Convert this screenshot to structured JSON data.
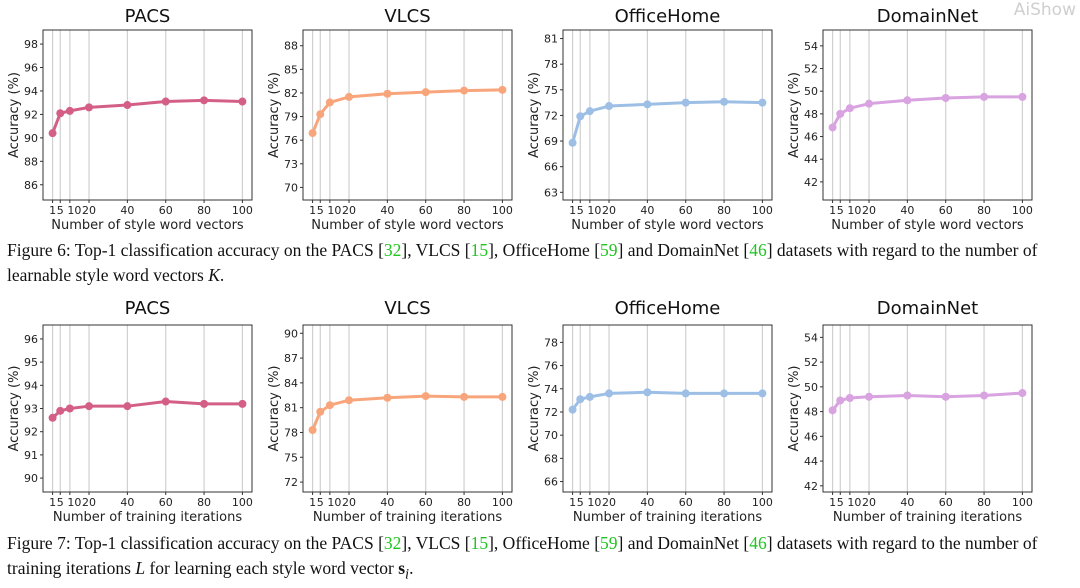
{
  "chart_data": [
    {
      "type": "line",
      "figure": 6,
      "title": "PACS",
      "xlabel": "Number of style word vectors",
      "ylabel": "Accuracy (%)",
      "x": [
        1,
        5,
        10,
        20,
        40,
        60,
        80,
        100
      ],
      "x_ticks": [
        "1",
        "5",
        "10",
        "20",
        "40",
        "60",
        "80",
        "100"
      ],
      "values": [
        90.4,
        92.1,
        92.3,
        92.6,
        92.8,
        93.1,
        93.2,
        93.1
      ],
      "y_ticks": [
        86,
        88,
        90,
        92,
        94,
        96,
        98
      ],
      "ylim": [
        84.7,
        99.2
      ],
      "xlim": [
        -4,
        105
      ],
      "grid": "vertical",
      "color": "#d45f86"
    },
    {
      "type": "line",
      "figure": 6,
      "title": "VLCS",
      "xlabel": "Number of style word vectors",
      "ylabel": "Accuracy (%)",
      "x": [
        1,
        5,
        10,
        20,
        40,
        60,
        80,
        100
      ],
      "x_ticks": [
        "1",
        "5",
        "10",
        "20",
        "40",
        "60",
        "80",
        "100"
      ],
      "values": [
        76.9,
        79.3,
        80.8,
        81.5,
        81.9,
        82.1,
        82.3,
        82.4
      ],
      "y_ticks": [
        70,
        73,
        76,
        79,
        82,
        85,
        88
      ],
      "ylim": [
        68.4,
        90.0
      ],
      "xlim": [
        -4,
        105
      ],
      "grid": "vertical",
      "color": "#f9a57c"
    },
    {
      "type": "line",
      "figure": 6,
      "title": "OfficeHome",
      "xlabel": "Number of style word vectors",
      "ylabel": "Accuracy (%)",
      "x": [
        1,
        5,
        10,
        20,
        40,
        60,
        80,
        100
      ],
      "x_ticks": [
        "1",
        "5",
        "10",
        "20",
        "40",
        "60",
        "80",
        "100"
      ],
      "values": [
        68.8,
        71.9,
        72.5,
        73.1,
        73.3,
        73.5,
        73.6,
        73.5
      ],
      "y_ticks": [
        63,
        66,
        69,
        72,
        75,
        78,
        81
      ],
      "ylim": [
        62.1,
        82.0
      ],
      "xlim": [
        -4,
        105
      ],
      "grid": "vertical",
      "color": "#9dbfe6"
    },
    {
      "type": "line",
      "figure": 6,
      "title": "DomainNet",
      "xlabel": "Number of style word vectors",
      "ylabel": "Accuracy (%)",
      "x": [
        1,
        5,
        10,
        20,
        40,
        60,
        80,
        100
      ],
      "x_ticks": [
        "1",
        "5",
        "10",
        "20",
        "40",
        "60",
        "80",
        "100"
      ],
      "values": [
        46.8,
        48.0,
        48.5,
        48.9,
        49.2,
        49.4,
        49.5,
        49.5
      ],
      "y_ticks": [
        42,
        44,
        46,
        48,
        50,
        52,
        54
      ],
      "ylim": [
        40.4,
        55.4
      ],
      "xlim": [
        -4,
        105
      ],
      "grid": "vertical",
      "color": "#d9a2e0"
    },
    {
      "type": "line",
      "figure": 7,
      "title": "PACS",
      "xlabel": "Number of training iterations",
      "ylabel": "Accuracy (%)",
      "x": [
        1,
        5,
        10,
        20,
        40,
        60,
        80,
        100
      ],
      "x_ticks": [
        "1",
        "5",
        "10",
        "20",
        "40",
        "60",
        "80",
        "100"
      ],
      "values": [
        92.6,
        92.9,
        93.0,
        93.1,
        93.1,
        93.3,
        93.2,
        93.2
      ],
      "y_ticks": [
        90,
        91,
        92,
        93,
        94,
        95,
        96
      ],
      "ylim": [
        89.4,
        96.6
      ],
      "xlim": [
        -4,
        105
      ],
      "grid": "vertical",
      "color": "#d45f86"
    },
    {
      "type": "line",
      "figure": 7,
      "title": "VLCS",
      "xlabel": "Number of training iterations",
      "ylabel": "Accuracy (%)",
      "x": [
        1,
        5,
        10,
        20,
        40,
        60,
        80,
        100
      ],
      "x_ticks": [
        "1",
        "5",
        "10",
        "20",
        "40",
        "60",
        "80",
        "100"
      ],
      "values": [
        78.3,
        80.5,
        81.3,
        81.9,
        82.2,
        82.4,
        82.3,
        82.3
      ],
      "y_ticks": [
        72,
        75,
        78,
        81,
        84,
        87,
        90
      ],
      "ylim": [
        70.8,
        91.0
      ],
      "xlim": [
        -4,
        105
      ],
      "grid": "vertical",
      "color": "#f9a57c"
    },
    {
      "type": "line",
      "figure": 7,
      "title": "OfficeHome",
      "xlabel": "Number of training iterations",
      "ylabel": "Accuracy (%)",
      "x": [
        1,
        5,
        10,
        20,
        40,
        60,
        80,
        100
      ],
      "x_ticks": [
        "1",
        "5",
        "10",
        "20",
        "40",
        "60",
        "80",
        "100"
      ],
      "values": [
        72.2,
        73.1,
        73.3,
        73.6,
        73.7,
        73.6,
        73.6,
        73.6
      ],
      "y_ticks": [
        66,
        68,
        70,
        72,
        74,
        76,
        78
      ],
      "ylim": [
        65.1,
        79.5
      ],
      "xlim": [
        -4,
        105
      ],
      "grid": "vertical",
      "color": "#9dbfe6"
    },
    {
      "type": "line",
      "figure": 7,
      "title": "DomainNet",
      "xlabel": "Number of training iterations",
      "ylabel": "Accuracy (%)",
      "x": [
        1,
        5,
        10,
        20,
        40,
        60,
        80,
        100
      ],
      "x_ticks": [
        "1",
        "5",
        "10",
        "20",
        "40",
        "60",
        "80",
        "100"
      ],
      "values": [
        48.1,
        48.9,
        49.1,
        49.2,
        49.3,
        49.2,
        49.3,
        49.5
      ],
      "y_ticks": [
        42,
        44,
        46,
        48,
        50,
        52,
        54
      ],
      "ylim": [
        41.5,
        55.0
      ],
      "xlim": [
        -4,
        105
      ],
      "grid": "vertical",
      "color": "#d9a2e0"
    }
  ],
  "captions": {
    "fig6": {
      "a": "Figure 6: Top-1 classification accuracy on the PACS [",
      "c1": "32",
      "b": "], VLCS [",
      "c2": "15",
      "c": "], OfficeHome [",
      "c3": "59",
      "d": "] and DomainNet [",
      "c4": "46",
      "e": "] datasets with regard to the number of learnable style word vectors ",
      "var": "K",
      "f": "."
    },
    "fig7": {
      "a": "Figure 7: Top-1 classification accuracy on the PACS [",
      "c1": "32",
      "b": "], VLCS [",
      "c2": "15",
      "c": "], OfficeHome [",
      "c3": "59",
      "d": "] and DomainNet [",
      "c4": "46",
      "e": "] datasets with regard to the number of training iterations ",
      "var": "L",
      "g": " for learning each style word vector ",
      "var2": "s",
      "sub": "i",
      "f": "."
    }
  },
  "watermark": "AiShow"
}
